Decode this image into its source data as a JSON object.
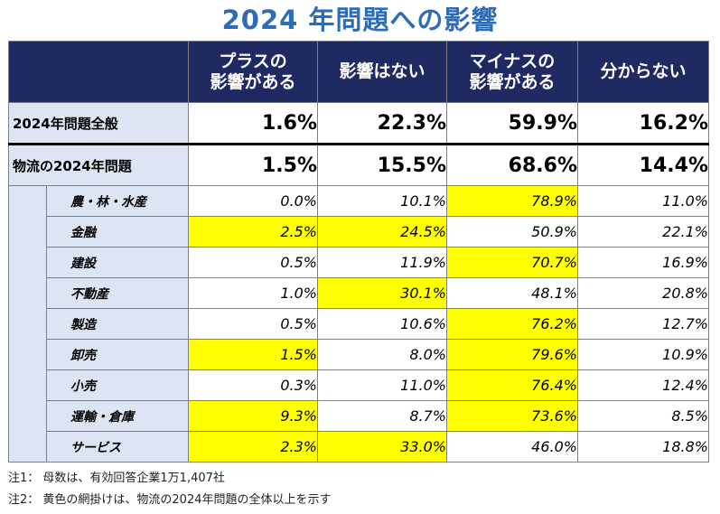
{
  "title": "2024 年問題への影響",
  "chart_data": {
    "type": "table",
    "columns": [
      "プラスの\n影響がある",
      "影響はない",
      "マイナスの\n影響がある",
      "分からない"
    ],
    "summary_rows": [
      {
        "label": "2024年問題全般",
        "values": [
          "1.6%",
          "22.3%",
          "59.9%",
          "16.2%"
        ]
      },
      {
        "label": "物流の2024年問題",
        "values": [
          "1.5%",
          "15.5%",
          "68.6%",
          "14.4%"
        ]
      }
    ],
    "industry_rows": [
      {
        "label": "農・林・水産",
        "values": [
          "0.0%",
          "10.1%",
          "78.9%",
          "11.0%"
        ],
        "highlight": [
          false,
          false,
          true,
          false
        ]
      },
      {
        "label": "金融",
        "values": [
          "2.5%",
          "24.5%",
          "50.9%",
          "22.1%"
        ],
        "highlight": [
          true,
          true,
          false,
          false
        ]
      },
      {
        "label": "建設",
        "values": [
          "0.5%",
          "11.9%",
          "70.7%",
          "16.9%"
        ],
        "highlight": [
          false,
          false,
          true,
          false
        ]
      },
      {
        "label": "不動産",
        "values": [
          "1.0%",
          "30.1%",
          "48.1%",
          "20.8%"
        ],
        "highlight": [
          false,
          true,
          false,
          false
        ]
      },
      {
        "label": "製造",
        "values": [
          "0.5%",
          "10.6%",
          "76.2%",
          "12.7%"
        ],
        "highlight": [
          false,
          false,
          true,
          false
        ]
      },
      {
        "label": "卸売",
        "values": [
          "1.5%",
          "8.0%",
          "79.6%",
          "10.9%"
        ],
        "highlight": [
          true,
          false,
          true,
          false
        ]
      },
      {
        "label": "小売",
        "values": [
          "0.3%",
          "11.0%",
          "76.4%",
          "12.4%"
        ],
        "highlight": [
          false,
          false,
          true,
          false
        ]
      },
      {
        "label": "運輸・倉庫",
        "values": [
          "9.3%",
          "8.7%",
          "73.6%",
          "8.5%"
        ],
        "highlight": [
          true,
          false,
          true,
          false
        ]
      },
      {
        "label": "サービス",
        "values": [
          "2.3%",
          "33.0%",
          "46.0%",
          "18.8%"
        ],
        "highlight": [
          true,
          true,
          false,
          false
        ]
      }
    ],
    "highlight_color": "#ffff00",
    "header_color": "#1f2a63",
    "label_bg_color": "#dbe5f3"
  },
  "notes": {
    "note1": "注1： 母数は、有効回答企業1万1,407社",
    "note2": "注2： 黄色の網掛けは、物流の2024年問題の全体以上を示す"
  }
}
